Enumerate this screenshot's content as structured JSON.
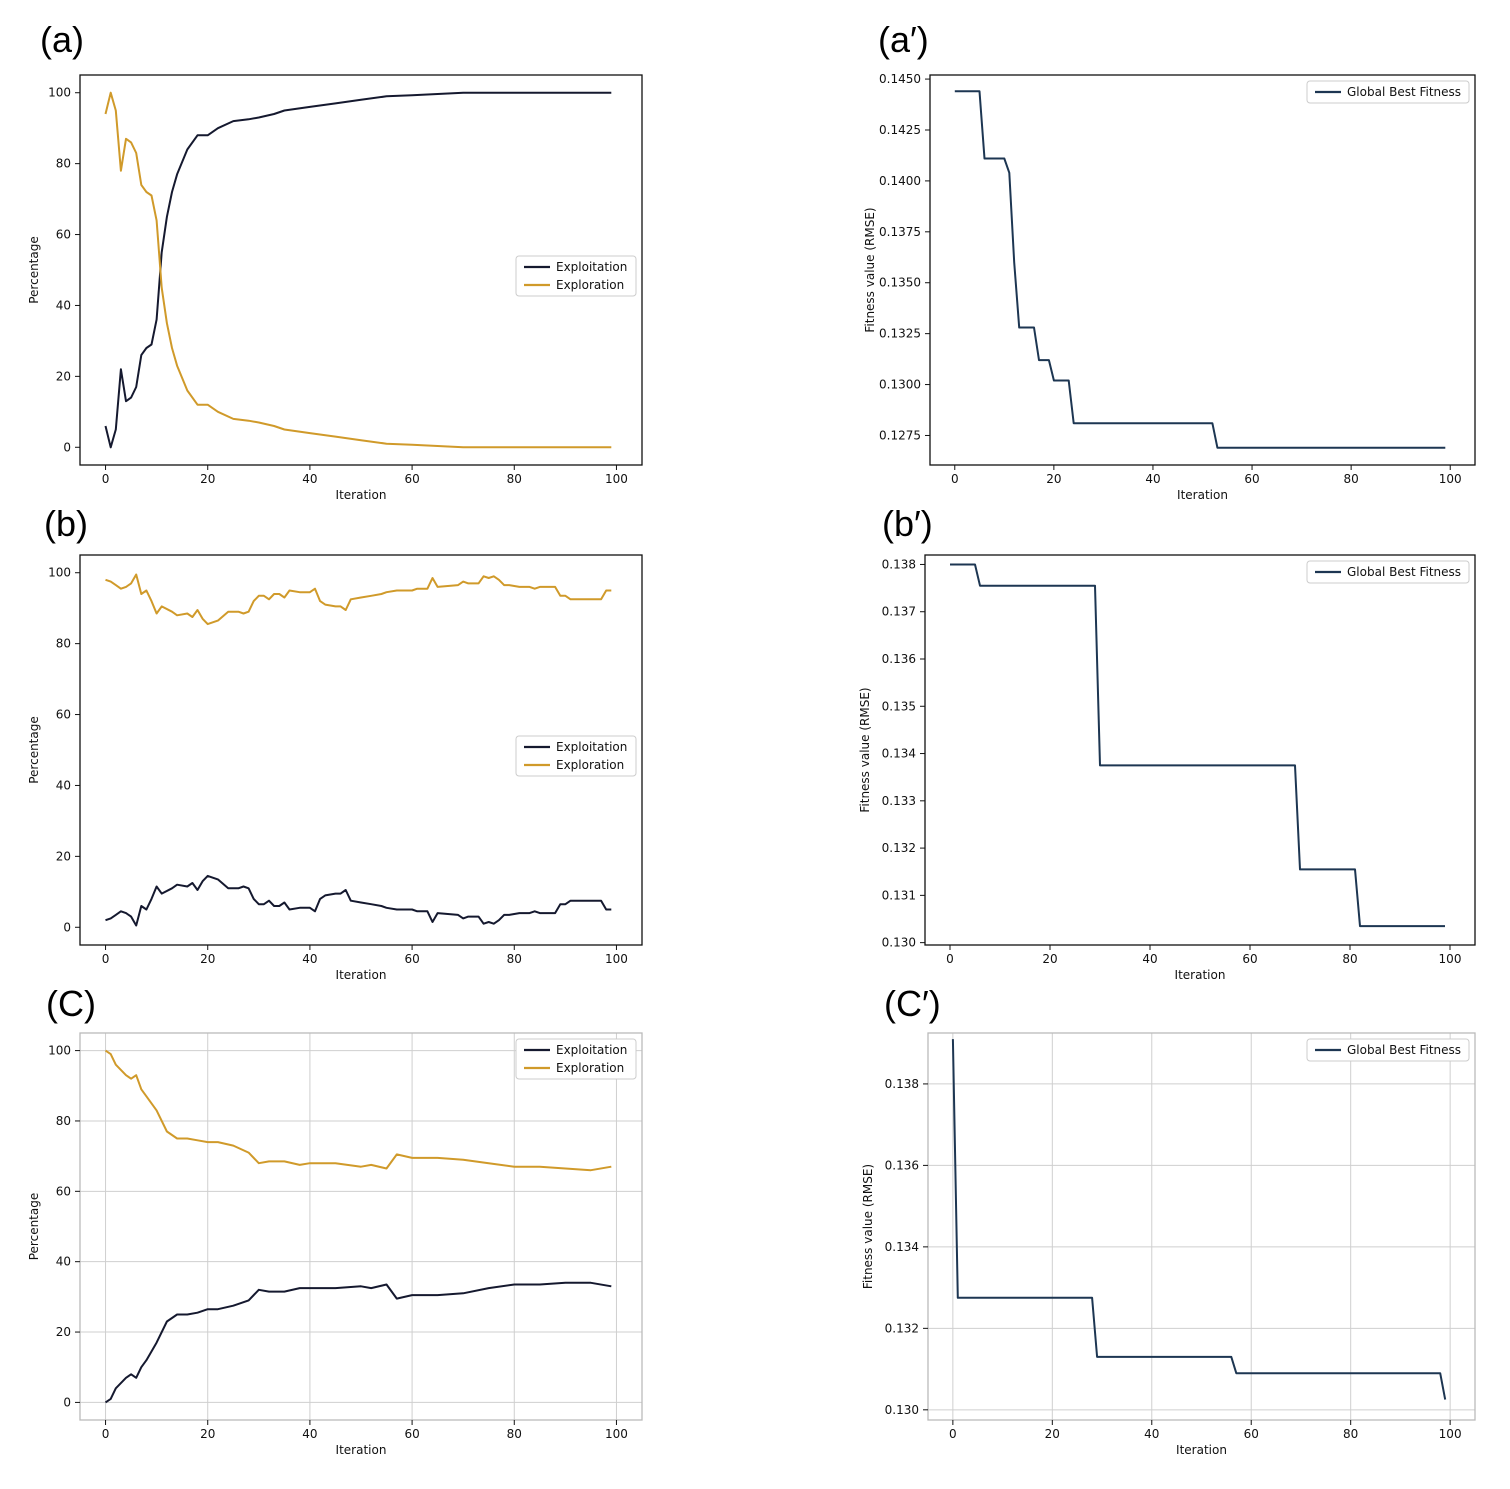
{
  "colors": {
    "exploitation": "#15192f",
    "exploration": "#d09a2a",
    "fitness": "#1d3652",
    "grid": "#cfcfcf"
  },
  "chart_data": [
    {
      "id": "a",
      "panel_label": "(a)",
      "type": "line",
      "xlabel": "Iteration",
      "ylabel": "Percentage",
      "xlim": [
        -5,
        105
      ],
      "ylim": [
        -5,
        105
      ],
      "xticks": [
        0,
        20,
        40,
        60,
        80,
        100
      ],
      "yticks": [
        0,
        20,
        40,
        60,
        80,
        100
      ],
      "ytick_labels": [
        "0",
        "20",
        "40",
        "60",
        "80",
        "100"
      ],
      "grid": false,
      "legend_position": "center-right",
      "series": [
        {
          "name": "Exploitation",
          "color_key": "exploitation",
          "x": [
            0,
            1,
            2,
            3,
            4,
            5,
            6,
            7,
            8,
            9,
            10,
            11,
            12,
            13,
            14,
            16,
            18,
            20,
            22,
            25,
            28,
            30,
            33,
            35,
            40,
            45,
            50,
            55,
            60,
            70,
            80,
            99
          ],
          "y": [
            6,
            0,
            5,
            22,
            13,
            14,
            17,
            26,
            28,
            29,
            36,
            55,
            65,
            72,
            77,
            84,
            88,
            88,
            90,
            92,
            92.5,
            93,
            94,
            95,
            96,
            97,
            98,
            99,
            99.3,
            100,
            100,
            100
          ]
        },
        {
          "name": "Exploration",
          "color_key": "exploration",
          "x": [
            0,
            1,
            2,
            3,
            4,
            5,
            6,
            7,
            8,
            9,
            10,
            11,
            12,
            13,
            14,
            16,
            18,
            20,
            22,
            25,
            28,
            30,
            33,
            35,
            40,
            45,
            50,
            55,
            60,
            70,
            80,
            99
          ],
          "y": [
            94,
            100,
            95,
            78,
            87,
            86,
            83,
            74,
            72,
            71,
            64,
            45,
            35,
            28,
            23,
            16,
            12,
            12,
            10,
            8,
            7.5,
            7,
            6,
            5,
            4,
            3,
            2,
            1,
            0.7,
            0,
            0,
            0
          ]
        }
      ]
    },
    {
      "id": "a2",
      "panel_label": "(a′)",
      "type": "line",
      "xlabel": "Iteration",
      "ylabel": "Fitness value (RMSE)",
      "xlim": [
        -5,
        105
      ],
      "ylim": [
        0.12605,
        0.1452
      ],
      "xticks": [
        0,
        20,
        40,
        60,
        80,
        100
      ],
      "yticks": [
        0.1275,
        0.13,
        0.1325,
        0.135,
        0.1375,
        0.14,
        0.1425,
        0.145
      ],
      "ytick_labels": [
        "0.1275",
        "0.1300",
        "0.1325",
        "0.1350",
        "0.1375",
        "0.1400",
        "0.1425",
        "0.1450"
      ],
      "grid": false,
      "legend_position": "top-right",
      "series": [
        {
          "name": "Global Best Fitness",
          "color_key": "fitness",
          "x": [
            0,
            5,
            6,
            10,
            11,
            12,
            13,
            16,
            17,
            19,
            20,
            23,
            24,
            52,
            53,
            99
          ],
          "y": [
            0.1444,
            0.1444,
            0.1411,
            0.1411,
            0.1404,
            0.136,
            0.1328,
            0.1328,
            0.1312,
            0.1312,
            0.1302,
            0.1302,
            0.1281,
            0.1281,
            0.1269,
            0.1269
          ]
        }
      ]
    },
    {
      "id": "b",
      "panel_label": "(b)",
      "type": "line",
      "xlabel": "Iteration",
      "ylabel": "Percentage",
      "xlim": [
        -5,
        105
      ],
      "ylim": [
        -5,
        105
      ],
      "xticks": [
        0,
        20,
        40,
        60,
        80,
        100
      ],
      "yticks": [
        0,
        20,
        40,
        60,
        80,
        100
      ],
      "ytick_labels": [
        "0",
        "20",
        "40",
        "60",
        "80",
        "100"
      ],
      "grid": false,
      "legend_position": "center-right",
      "series": [
        {
          "name": "Exploitation",
          "color_key": "exploitation",
          "x": [
            0,
            1,
            2,
            3,
            4,
            5,
            6,
            7,
            8,
            9,
            10,
            11,
            13,
            14,
            16,
            17,
            18,
            19,
            20,
            22,
            24,
            26,
            27,
            28,
            29,
            30,
            31,
            32,
            33,
            34,
            35,
            36,
            38,
            40,
            41,
            42,
            43,
            45,
            46,
            47,
            48,
            50,
            52,
            54,
            55,
            57,
            60,
            61,
            63,
            64,
            65,
            69,
            70,
            71,
            73,
            74,
            75,
            76,
            77,
            78,
            79,
            81,
            83,
            84,
            85,
            88,
            89,
            90,
            91,
            95,
            97,
            98,
            99
          ],
          "y": [
            2,
            2.5,
            3.5,
            4.5,
            4,
            3,
            0.5,
            6,
            5,
            8,
            11.5,
            9.5,
            11,
            12,
            11.5,
            12.5,
            10.5,
            13,
            14.5,
            13.5,
            11,
            11,
            11.5,
            11,
            8,
            6.5,
            6.5,
            7.5,
            6,
            6,
            7,
            5,
            5.5,
            5.5,
            4.5,
            8,
            9,
            9.5,
            9.5,
            10.5,
            7.5,
            7,
            6.5,
            6,
            5.5,
            5,
            5,
            4.5,
            4.5,
            1.5,
            4,
            3.5,
            2.5,
            3,
            3,
            1,
            1.5,
            1,
            2,
            3.5,
            3.5,
            4,
            4,
            4.5,
            4,
            4,
            6.5,
            6.5,
            7.5,
            7.5,
            7.5,
            5,
            5
          ]
        },
        {
          "name": "Exploration",
          "color_key": "exploration",
          "x": [
            0,
            1,
            2,
            3,
            4,
            5,
            6,
            7,
            8,
            9,
            10,
            11,
            13,
            14,
            16,
            17,
            18,
            19,
            20,
            22,
            24,
            26,
            27,
            28,
            29,
            30,
            31,
            32,
            33,
            34,
            35,
            36,
            38,
            40,
            41,
            42,
            43,
            45,
            46,
            47,
            48,
            50,
            52,
            54,
            55,
            57,
            60,
            61,
            63,
            64,
            65,
            69,
            70,
            71,
            73,
            74,
            75,
            76,
            77,
            78,
            79,
            81,
            83,
            84,
            85,
            88,
            89,
            90,
            91,
            95,
            97,
            98,
            99
          ],
          "y": [
            98,
            97.5,
            96.5,
            95.5,
            96,
            97,
            99.5,
            94,
            95,
            92,
            88.5,
            90.5,
            89,
            88,
            88.5,
            87.5,
            89.5,
            87,
            85.5,
            86.5,
            89,
            89,
            88.5,
            89,
            92,
            93.5,
            93.5,
            92.5,
            94,
            94,
            93,
            95,
            94.5,
            94.5,
            95.5,
            92,
            91,
            90.5,
            90.5,
            89.5,
            92.5,
            93,
            93.5,
            94,
            94.5,
            95,
            95,
            95.5,
            95.5,
            98.5,
            96,
            96.5,
            97.5,
            97,
            97,
            99,
            98.5,
            99,
            98,
            96.5,
            96.5,
            96,
            96,
            95.5,
            96,
            96,
            93.5,
            93.5,
            92.5,
            92.5,
            92.5,
            95,
            95
          ]
        }
      ]
    },
    {
      "id": "b2",
      "panel_label": "(b′)",
      "type": "line",
      "xlabel": "Iteration",
      "ylabel": "Fitness value (RMSE)",
      "xlim": [
        -5,
        105
      ],
      "ylim": [
        0.12995,
        0.1382
      ],
      "xticks": [
        0,
        20,
        40,
        60,
        80,
        100
      ],
      "yticks": [
        0.13,
        0.131,
        0.132,
        0.133,
        0.134,
        0.135,
        0.136,
        0.137,
        0.138
      ],
      "ytick_labels": [
        "0.130",
        "0.131",
        "0.132",
        "0.133",
        "0.134",
        "0.135",
        "0.136",
        "0.137",
        "0.138"
      ],
      "grid": false,
      "legend_position": "top-right",
      "series": [
        {
          "name": "Global Best Fitness",
          "color_key": "fitness",
          "x": [
            0,
            5,
            6,
            29,
            30,
            69,
            70,
            81,
            82,
            99
          ],
          "y": [
            0.138,
            0.138,
            0.13755,
            0.13755,
            0.13375,
            0.13375,
            0.13155,
            0.13155,
            0.13035,
            0.13035
          ]
        }
      ]
    },
    {
      "id": "c",
      "panel_label": "(C)",
      "type": "line",
      "xlabel": "Iteration",
      "ylabel": "Percentage",
      "xlim": [
        -5,
        105
      ],
      "ylim": [
        -5,
        105
      ],
      "xticks": [
        0,
        20,
        40,
        60,
        80,
        100
      ],
      "yticks": [
        0,
        20,
        40,
        60,
        80,
        100
      ],
      "ytick_labels": [
        "0",
        "20",
        "40",
        "60",
        "80",
        "100"
      ],
      "grid": true,
      "legend_position": "top-right",
      "series": [
        {
          "name": "Exploitation",
          "color_key": "exploitation",
          "x": [
            0,
            1,
            2,
            4,
            5,
            6,
            7,
            8,
            10,
            12,
            14,
            16,
            18,
            20,
            22,
            25,
            28,
            30,
            32,
            35,
            38,
            40,
            45,
            50,
            52,
            55,
            57,
            60,
            65,
            70,
            75,
            80,
            85,
            90,
            95,
            99
          ],
          "y": [
            0,
            1,
            4,
            7,
            8,
            7,
            10,
            12,
            17,
            23,
            25,
            25,
            25.5,
            26.5,
            26.5,
            27.5,
            29,
            32,
            31.5,
            31.5,
            32.5,
            32.5,
            32.5,
            33,
            32.5,
            33.5,
            29.5,
            30.5,
            30.5,
            31,
            32.5,
            33.5,
            33.5,
            34,
            34,
            33
          ]
        },
        {
          "name": "Exploration",
          "color_key": "exploration",
          "x": [
            0,
            1,
            2,
            4,
            5,
            6,
            7,
            8,
            10,
            12,
            14,
            16,
            18,
            20,
            22,
            25,
            28,
            30,
            32,
            35,
            38,
            40,
            45,
            50,
            52,
            55,
            57,
            60,
            65,
            70,
            75,
            80,
            85,
            90,
            95,
            99
          ],
          "y": [
            100,
            99,
            96,
            93,
            92,
            93,
            89,
            87,
            83,
            77,
            75,
            75,
            74.5,
            74,
            74,
            73,
            71,
            68,
            68.5,
            68.5,
            67.5,
            68,
            68,
            67,
            67.5,
            66.5,
            70.5,
            69.5,
            69.5,
            69,
            68,
            67,
            67,
            66.5,
            66,
            67
          ]
        }
      ]
    },
    {
      "id": "c2",
      "panel_label": "(C′)",
      "type": "line",
      "xlabel": "Iteration",
      "ylabel": "Fitness value (RMSE)",
      "xlim": [
        -5,
        105
      ],
      "ylim": [
        0.12975,
        0.13925
      ],
      "xticks": [
        0,
        20,
        40,
        60,
        80,
        100
      ],
      "yticks": [
        0.13,
        0.132,
        0.134,
        0.136,
        0.138
      ],
      "ytick_labels": [
        "0.130",
        "0.132",
        "0.134",
        "0.136",
        "0.138"
      ],
      "grid": true,
      "legend_position": "top-right",
      "series": [
        {
          "name": "Global Best Fitness",
          "color_key": "fitness",
          "x": [
            0,
            1,
            28,
            29,
            56,
            57,
            98,
            99
          ],
          "y": [
            0.1391,
            0.13275,
            0.13275,
            0.1313,
            0.1313,
            0.1309,
            0.1309,
            0.13025
          ]
        }
      ]
    }
  ]
}
